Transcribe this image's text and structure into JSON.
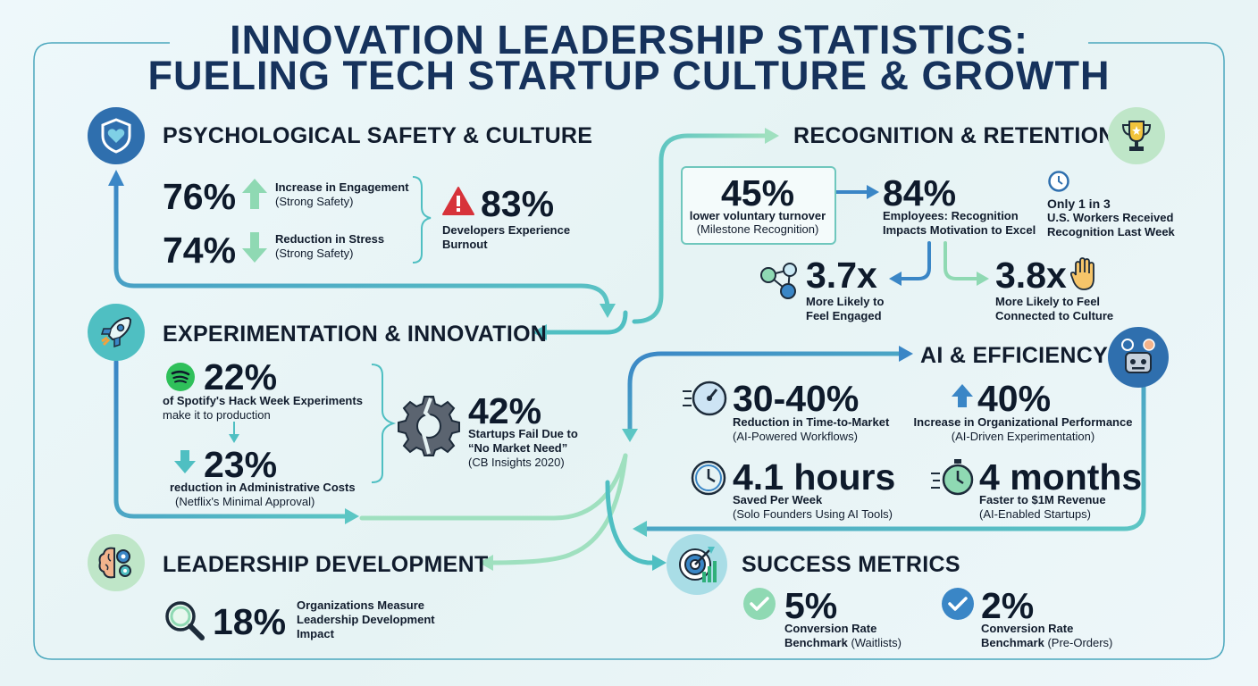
{
  "title": {
    "line1": "INNOVATION LEADERSHIP STATISTICS:",
    "line2": "FUELING TECH STARTUP CULTURE & GROWTH"
  },
  "psych": {
    "title": "PSYCHOLOGICAL SAFETY & CULTURE",
    "icon": "shield-heart-icon",
    "engagement": {
      "value": "76%",
      "label": "Increase in Engagement",
      "sub": "(Strong Safety)"
    },
    "stress": {
      "value": "74%",
      "label": "Reduction in Stress",
      "sub": "(Strong Safety)"
    },
    "burnout": {
      "value": "83%",
      "label1": "Developers Experience",
      "label2": "Burnout"
    }
  },
  "recog": {
    "title": "RECOGNITION & RETENTION",
    "icon": "trophy-icon",
    "turnover": {
      "value": "45%",
      "label": "lower voluntary turnover",
      "sub": "(Milestone Recognition)"
    },
    "motivation": {
      "value": "84%",
      "label1": "Employees: Recognition",
      "label2": "Impacts Motivation to Excel"
    },
    "weekly": {
      "line1": "Only 1 in 3",
      "line2": "U.S. Workers Received",
      "line3": "Recognition Last Week"
    },
    "engaged": {
      "value": "3.7x",
      "label1": "More Likely to",
      "label2": "Feel Engaged"
    },
    "connected": {
      "value": "3.8x",
      "label1": "More Likely to Feel",
      "label2": "Connected to Culture"
    }
  },
  "exp": {
    "title": "EXPERIMENTATION & INNOVATION",
    "icon": "rocket-icon",
    "spotify": {
      "value": "22%",
      "label1": "of Spotify's Hack Week Experiments",
      "label2": "make it to production"
    },
    "netflix": {
      "value": "23%",
      "label1": "reduction in Administrative Costs",
      "label2": "(Netflix's Minimal Approval)"
    },
    "fail": {
      "value": "42%",
      "label1": "Startups Fail Due to",
      "label2": "“No Market Need”",
      "sub": "(CB Insights 2020)"
    }
  },
  "ai": {
    "title": "AI & EFFICIENCY",
    "icon": "robot-icon",
    "ttm": {
      "value": "30-40%",
      "label": "Reduction in Time-to-Market",
      "sub": "(AI-Powered Workflows)"
    },
    "perf": {
      "value": "40%",
      "label": "Increase in Organizational Performance",
      "sub": "(AI-Driven Experimentation)"
    },
    "hours": {
      "value": "4.1 hours",
      "label": "Saved Per Week",
      "sub": "(Solo Founders Using AI Tools)"
    },
    "months": {
      "value": "4 months",
      "label": "Faster to $1M Revenue",
      "sub": "(AI-Enabled Startups)"
    }
  },
  "lead": {
    "title": "LEADERSHIP DEVELOPMENT",
    "icon": "brain-gears-icon",
    "measure": {
      "value": "18%",
      "label1": "Organizations Measure",
      "label2": "Leadership Development",
      "label3": "Impact"
    }
  },
  "success": {
    "title": "SUCCESS METRICS",
    "icon": "target-chart-icon",
    "waitlist": {
      "value": "5%",
      "label1": "Conversion Rate",
      "label2": "Benchmark",
      "label2b": "(Waitlists)"
    },
    "preorder": {
      "value": "2%",
      "label1": "Conversion Rate",
      "label2": "Benchmark",
      "label2b": "(Pre-Orders)"
    }
  },
  "colors": {
    "navy": "#16325c",
    "blue": "#3a86c6",
    "teal": "#4fbfc2",
    "mint": "#8fd9b3",
    "red": "#d7333a"
  }
}
